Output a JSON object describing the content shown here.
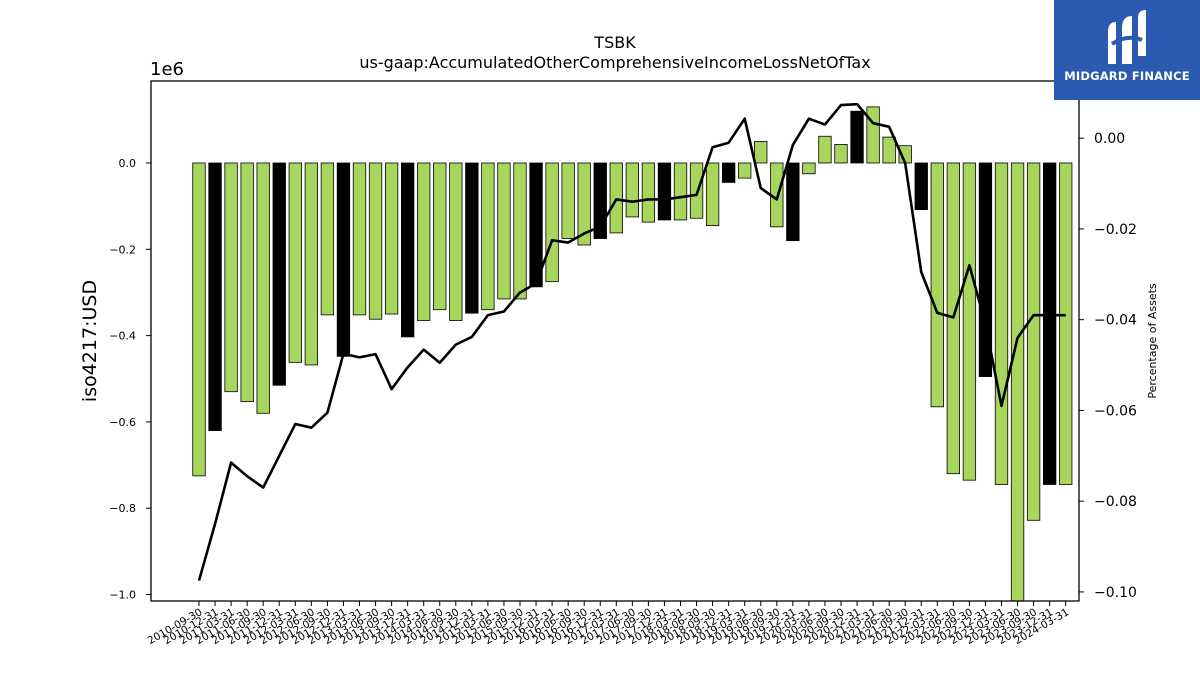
{
  "chart_data": {
    "type": "bar",
    "title": "TSBK",
    "subtitle": "us-gaap:AccumulatedOtherComprehensiveIncomeLossNetOfTax",
    "ylabel": "iso4217:USD",
    "y2label": "Percentage of Assets",
    "y_offset_label": "1e6",
    "ylim": [
      -1.015,
      0.19
    ],
    "y2lim": [
      -0.102,
      0.0126
    ],
    "yticks": [
      0.0,
      -0.2,
      -0.4,
      -0.6,
      -0.8,
      -1.0
    ],
    "yticklabels": [
      "0.0",
      "−0.2",
      "−0.4",
      "−0.6",
      "−0.8",
      "−1.0"
    ],
    "y2ticks": [
      0.0,
      -0.02,
      -0.04,
      -0.06,
      -0.08,
      -0.1
    ],
    "y2ticklabels": [
      "0.00",
      "−0.02",
      "−0.04",
      "−0.06",
      "−0.08",
      "−0.10"
    ],
    "grid": false,
    "colors": {
      "bar": "#a8d65c",
      "bar_q4": "#000000",
      "line": "#000000"
    },
    "categories": [
      "2010-09-30",
      "2010-12-31",
      "2011-03-31",
      "2011-06-30",
      "2011-09-30",
      "2011-12-31",
      "2012-03-31",
      "2012-06-30",
      "2012-09-30",
      "2012-12-31",
      "2013-03-31",
      "2013-06-30",
      "2013-09-30",
      "2013-12-31",
      "2014-03-31",
      "2014-06-30",
      "2014-09-30",
      "2014-12-31",
      "2015-03-31",
      "2015-06-30",
      "2015-09-30",
      "2015-12-31",
      "2016-03-31",
      "2016-06-30",
      "2016-09-30",
      "2016-12-31",
      "2017-03-31",
      "2017-06-30",
      "2017-09-30",
      "2017-12-31",
      "2018-03-31",
      "2018-06-30",
      "2018-09-30",
      "2018-12-31",
      "2019-03-31",
      "2019-06-30",
      "2019-09-30",
      "2019-12-31",
      "2020-03-31",
      "2020-06-30",
      "2020-09-30",
      "2020-12-31",
      "2021-03-31",
      "2021-06-30",
      "2021-09-30",
      "2021-12-31",
      "2022-03-31",
      "2022-06-30",
      "2022-09-30",
      "2022-12-31",
      "2023-03-31",
      "2023-06-30",
      "2023-09-30",
      "2023-12-31",
      "2024-03-31"
    ],
    "xticklabels": [
      "2010-09-30",
      "2010-12-31",
      "2011-03-31",
      "2011-06-30",
      "2011-09-30",
      "2011-12-31",
      "2012-03-31",
      "2012-06-30",
      "2012-09-30",
      "2012-12-31",
      "2013-03-31",
      "2013-06-30",
      "2013-09-30",
      "2013-12-31",
      "2014-03-31",
      "2014-06-30",
      "2014-09-30",
      "2014-12-31",
      "2015-03-31",
      "2015-06-30",
      "2015-09-30",
      "2015-12-31",
      "2016-03-31",
      "2016-06-30",
      "2016-09-30",
      "2016-12-31",
      "2017-03-31",
      "2017-06-30",
      "2017-09-30",
      "2017-12-31",
      "2018-03-31",
      "2018-06-30",
      "2018-09-30",
      "2018-12-31",
      "2019-03-31",
      "2019-06-30",
      "2019-09-30",
      "2019-12-31",
      "2020-03-31",
      "2020-06-30",
      "2020-09-30",
      "2020-12-31",
      "2021-03-31",
      "2021-06-30",
      "2021-09-30",
      "2021-12-31",
      "2022-03-31",
      "2022-06-30",
      "2022-09-30",
      "2022-12-31",
      "2023-03-31",
      "2023-06-30",
      "2023-09-30",
      "2023-12-31",
      "2024-03-31"
    ],
    "series": [
      {
        "axis": "left",
        "type": "bar",
        "values": [
          -0.725,
          -0.62,
          -0.53,
          -0.553,
          -0.58,
          -0.515,
          -0.462,
          -0.468,
          -0.352,
          -0.448,
          -0.352,
          -0.362,
          -0.35,
          -0.403,
          -0.365,
          -0.34,
          -0.365,
          -0.348,
          -0.34,
          -0.315,
          -0.315,
          -0.287,
          -0.275,
          -0.175,
          -0.19,
          -0.175,
          -0.162,
          -0.125,
          -0.137,
          -0.132,
          -0.132,
          -0.128,
          -0.145,
          -0.045,
          -0.035,
          0.05,
          -0.148,
          -0.18,
          -0.025,
          0.062,
          0.043,
          0.12,
          0.13,
          0.06,
          0.04,
          -0.108,
          -0.565,
          -0.72,
          -0.735,
          -0.495,
          -0.745,
          -1.015,
          -0.828,
          -0.745,
          -0.745
        ]
      },
      {
        "axis": "right",
        "type": "line",
        "values": [
          -0.0975,
          -0.085,
          -0.0715,
          -0.0745,
          -0.077,
          -0.07,
          -0.063,
          -0.0638,
          -0.0605,
          -0.0475,
          -0.0483,
          -0.0476,
          -0.0553,
          -0.0505,
          -0.0466,
          -0.0495,
          -0.0455,
          -0.0438,
          -0.039,
          -0.0382,
          -0.034,
          -0.032,
          -0.0225,
          -0.023,
          -0.021,
          -0.0195,
          -0.0135,
          -0.014,
          -0.0135,
          -0.0135,
          -0.013,
          -0.0125,
          -0.002,
          -0.001,
          0.0043,
          -0.011,
          -0.0135,
          -0.0015,
          0.0043,
          0.003,
          0.0073,
          0.0075,
          0.0033,
          0.0025,
          -0.0055,
          -0.0295,
          -0.0385,
          -0.0395,
          -0.028,
          -0.041,
          -0.059,
          -0.044,
          -0.039,
          -0.039,
          -0.039
        ]
      }
    ]
  },
  "logo": {
    "name": "MIDGARD FINANCE"
  }
}
